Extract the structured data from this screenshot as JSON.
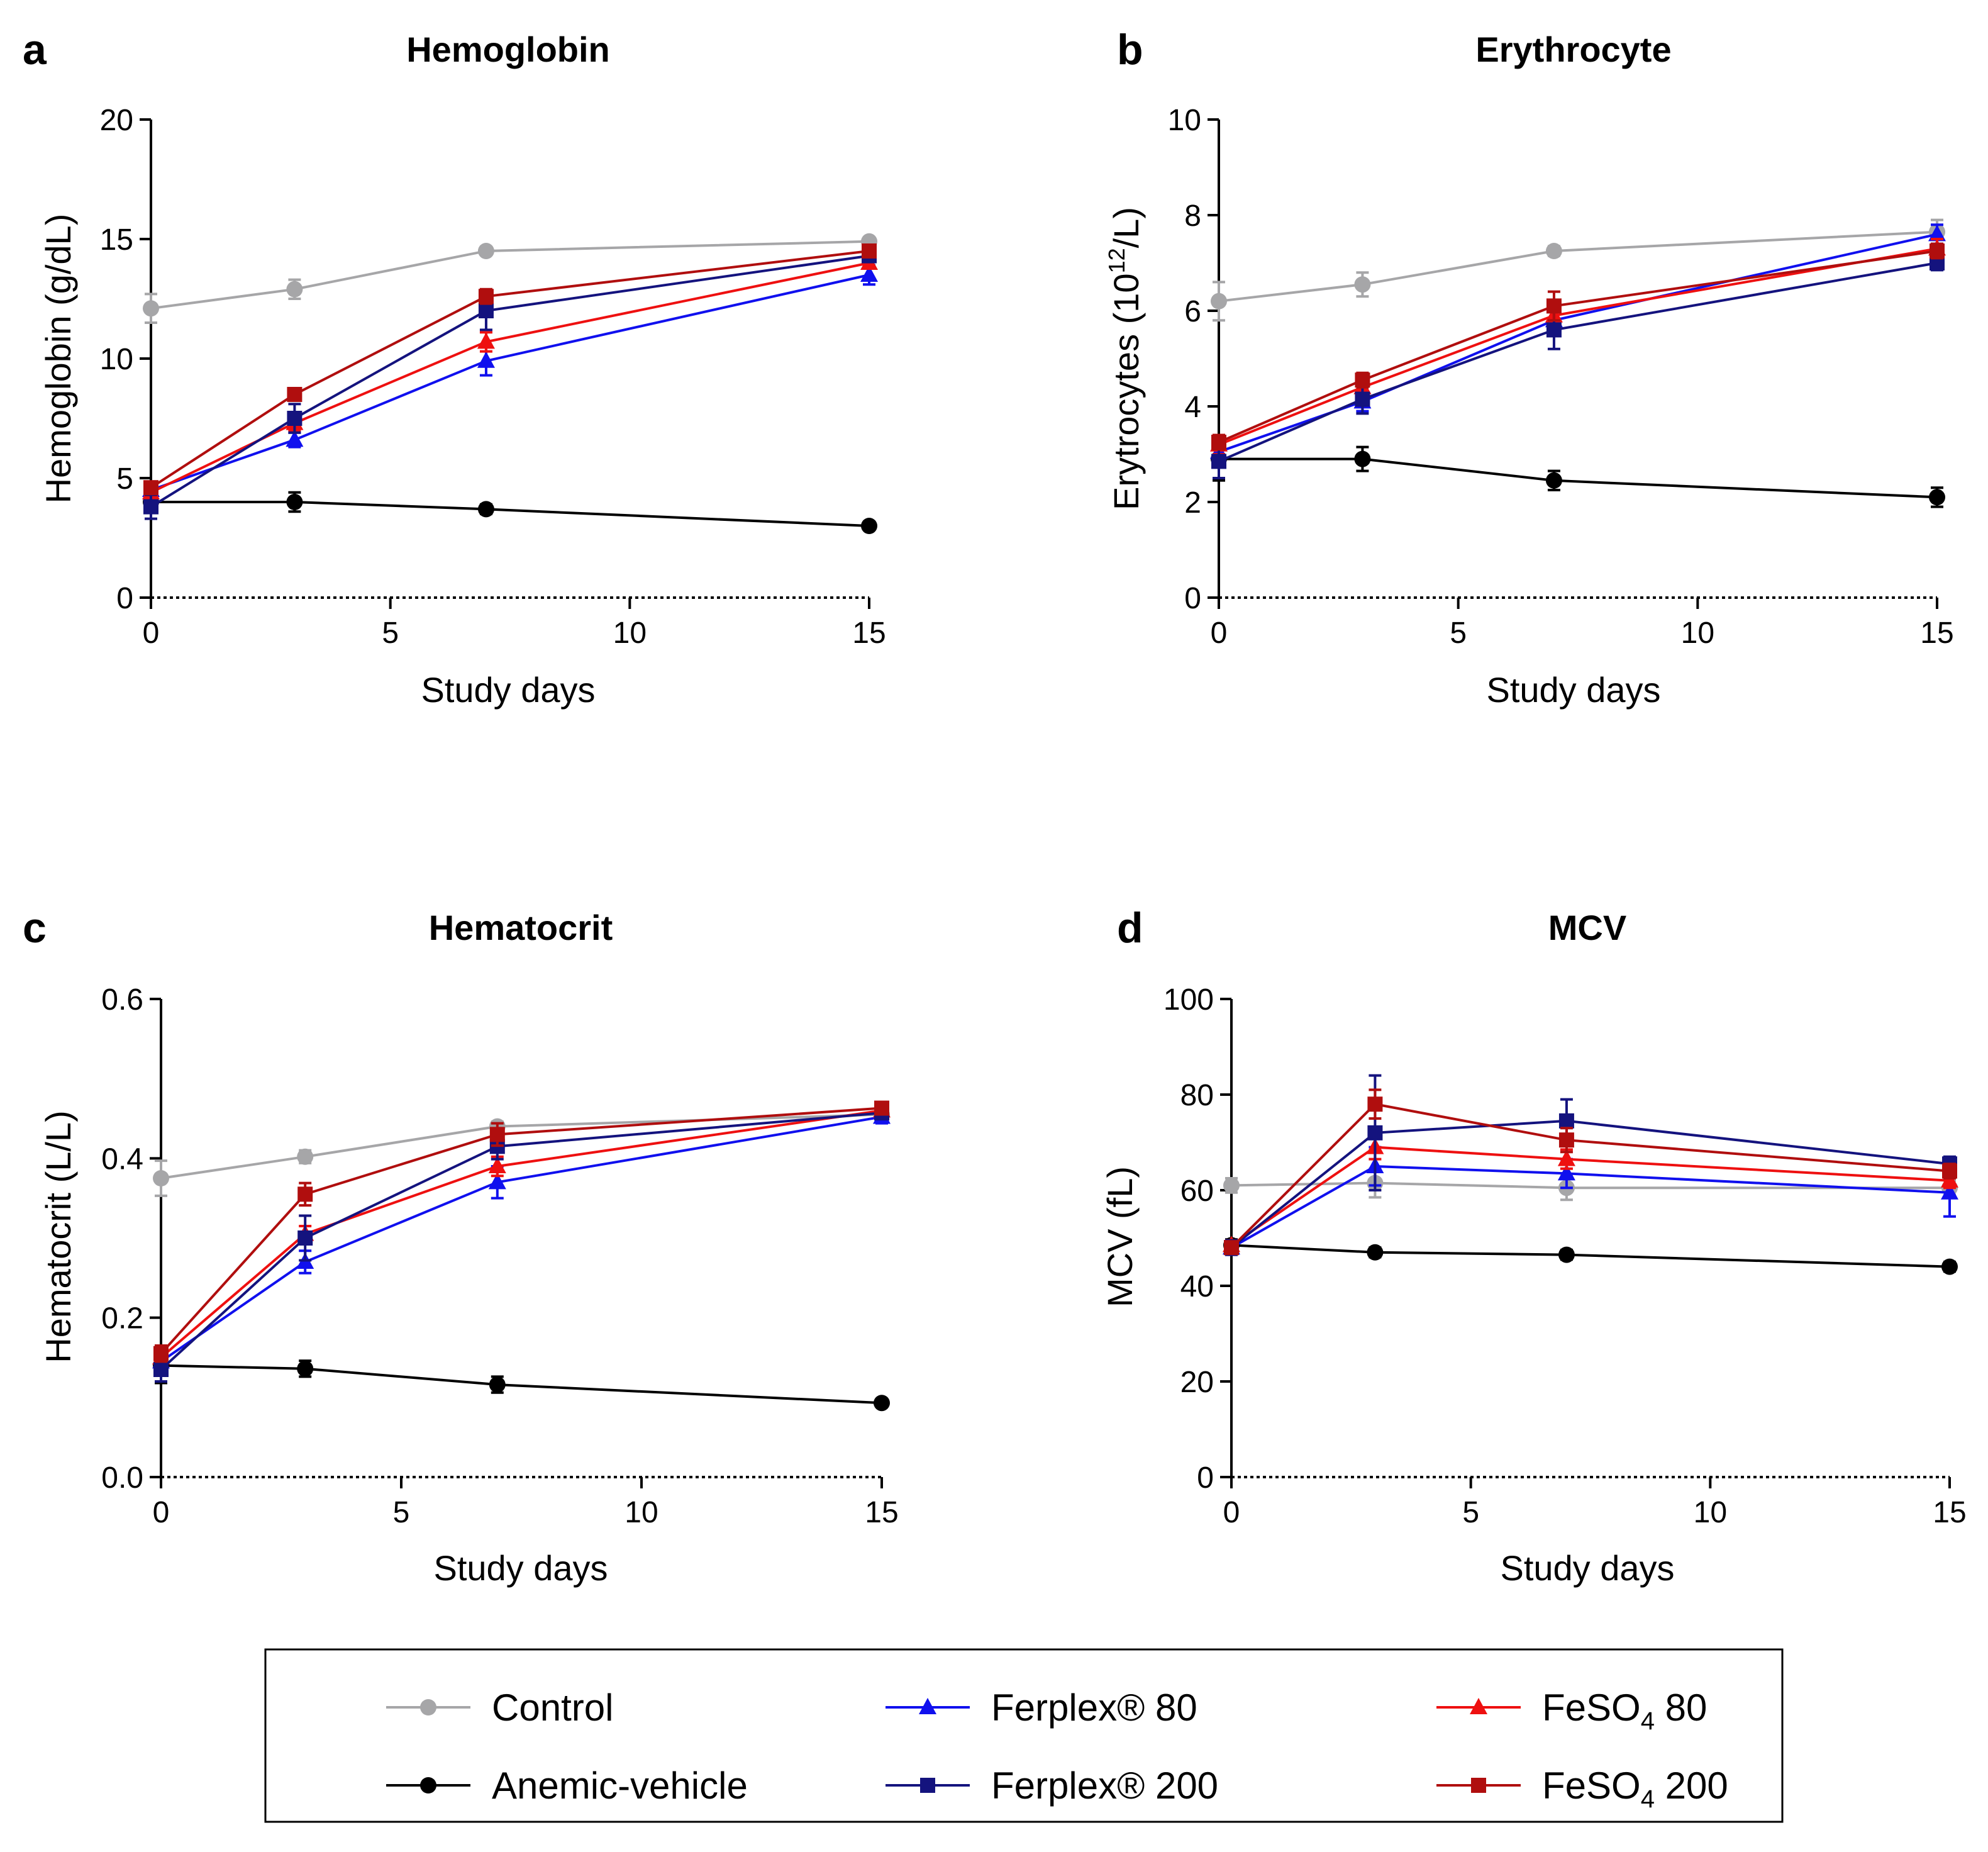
{
  "colors": {
    "control": "#a6a6a8",
    "anemic": "#000000",
    "ferplex80": "#1010ee",
    "ferplex200": "#14137e",
    "feso480": "#ee1010",
    "feso4200": "#b00e0e"
  },
  "legend": [
    {
      "key": "control",
      "label": "Control",
      "marker": "circle"
    },
    {
      "key": "anemic",
      "label": "Anemic-vehicle",
      "marker": "circle"
    },
    {
      "key": "ferplex80",
      "label": "Ferplex® 80",
      "marker": "triangle"
    },
    {
      "key": "ferplex200",
      "label": "Ferplex® 200",
      "marker": "square"
    },
    {
      "key": "feso480",
      "label_main": "FeSO",
      "label_sub": "4",
      "label_tail": " 80",
      "marker": "triangle"
    },
    {
      "key": "feso4200",
      "label_main": "FeSO",
      "label_sub": "4",
      "label_tail": " 200",
      "marker": "square"
    }
  ],
  "chart_data": [
    {
      "type": "line",
      "letter": "a",
      "title": "Hemoglobin",
      "xlabel": "Study days",
      "ylabel": "Hemoglobin (g/dL)",
      "xlim": [
        0,
        15
      ],
      "ylim": [
        0,
        20
      ],
      "xticks": [
        0,
        5,
        10,
        15
      ],
      "yticks": [
        0,
        5,
        10,
        15,
        20
      ],
      "ytick_labels": [
        "0",
        "5",
        "10",
        "15",
        "20"
      ],
      "x": [
        0,
        3,
        7,
        15
      ],
      "series": [
        {
          "key": "control",
          "name": "Control",
          "values": [
            12.1,
            12.9,
            14.5,
            14.9
          ],
          "errors": [
            0.6,
            0.4,
            0.15,
            0.15
          ]
        },
        {
          "key": "anemic",
          "name": "Anemic-vehicle",
          "values": [
            4.0,
            4.0,
            3.7,
            3.0
          ],
          "errors": [
            0.3,
            0.4,
            0.2,
            0.15
          ]
        },
        {
          "key": "ferplex80",
          "name": "Ferplex® 80",
          "values": [
            4.5,
            6.6,
            9.9,
            13.5
          ],
          "errors": [
            0.3,
            0.3,
            0.6,
            0.4
          ]
        },
        {
          "key": "ferplex200",
          "name": "Ferplex® 200",
          "values": [
            3.8,
            7.5,
            12.0,
            14.3
          ],
          "errors": [
            0.5,
            0.6,
            0.8,
            0.2
          ]
        },
        {
          "key": "feso480",
          "name": "FeSO4 80",
          "values": [
            4.4,
            7.3,
            10.7,
            14.0
          ],
          "errors": [
            0.3,
            0.3,
            0.4,
            0.2
          ]
        },
        {
          "key": "feso4200",
          "name": "FeSO4 200",
          "values": [
            4.6,
            8.5,
            12.6,
            14.5
          ],
          "errors": [
            0.2,
            0.2,
            0.3,
            0.2
          ]
        }
      ]
    },
    {
      "type": "line",
      "letter": "b",
      "title": "Erythrocyte",
      "xlabel": "Study days",
      "ylabel_main": "Erytrocytes (10",
      "ylabel_sup": "12",
      "ylabel_tail": "/L)",
      "xlim": [
        0,
        15
      ],
      "ylim": [
        0,
        10
      ],
      "xticks": [
        0,
        5,
        10,
        15
      ],
      "yticks": [
        0,
        2,
        4,
        6,
        8,
        10
      ],
      "ytick_labels": [
        "0",
        "2",
        "4",
        "6",
        "8",
        "10"
      ],
      "x": [
        0,
        3,
        7,
        15
      ],
      "series": [
        {
          "key": "control",
          "name": "Control",
          "values": [
            6.2,
            6.55,
            7.25,
            7.65
          ],
          "errors": [
            0.4,
            0.25,
            0.1,
            0.25
          ]
        },
        {
          "key": "anemic",
          "name": "Anemic-vehicle",
          "values": [
            2.9,
            2.9,
            2.45,
            2.1
          ],
          "errors": [
            0.45,
            0.25,
            0.2,
            0.2
          ]
        },
        {
          "key": "ferplex80",
          "name": "Ferplex® 80",
          "values": [
            3.05,
            4.1,
            5.8,
            7.6
          ],
          "errors": [
            0.25,
            0.2,
            0.3,
            0.2
          ]
        },
        {
          "key": "ferplex200",
          "name": "Ferplex® 200",
          "values": [
            2.85,
            4.15,
            5.6,
            7.0
          ],
          "errors": [
            0.35,
            0.3,
            0.4,
            0.15
          ]
        },
        {
          "key": "feso480",
          "name": "FeSO4 80",
          "values": [
            3.2,
            4.4,
            5.9,
            7.3
          ],
          "errors": [
            0.2,
            0.2,
            0.3,
            0.2
          ]
        },
        {
          "key": "feso4200",
          "name": "FeSO4 200",
          "values": [
            3.25,
            4.55,
            6.1,
            7.25
          ],
          "errors": [
            0.15,
            0.15,
            0.3,
            0.15
          ]
        }
      ]
    },
    {
      "type": "line",
      "letter": "c",
      "title": "Hematocrit",
      "xlabel": "Study days",
      "ylabel": "Hematocrit (L/L)",
      "xlim": [
        0,
        15
      ],
      "ylim": [
        0,
        0.6
      ],
      "xticks": [
        0,
        5,
        10,
        15
      ],
      "yticks": [
        0,
        0.2,
        0.4,
        0.6
      ],
      "ytick_labels": [
        "0.0",
        "0.2",
        "0.4",
        "0.6"
      ],
      "x": [
        0,
        3,
        7,
        15
      ],
      "series": [
        {
          "key": "control",
          "name": "Control",
          "values": [
            0.375,
            0.402,
            0.44,
            0.455
          ],
          "errors": [
            0.022,
            0.008,
            0.006,
            0.005
          ]
        },
        {
          "key": "anemic",
          "name": "Anemic-vehicle",
          "values": [
            0.14,
            0.136,
            0.116,
            0.093
          ],
          "errors": [
            0.022,
            0.01,
            0.01,
            0.005
          ]
        },
        {
          "key": "ferplex80",
          "name": "Ferplex® 80",
          "values": [
            0.145,
            0.27,
            0.37,
            0.452
          ],
          "errors": [
            0.012,
            0.014,
            0.02,
            0.008
          ]
        },
        {
          "key": "ferplex200",
          "name": "Ferplex® 200",
          "values": [
            0.135,
            0.3,
            0.415,
            0.457
          ],
          "errors": [
            0.015,
            0.028,
            0.016,
            0.006
          ]
        },
        {
          "key": "feso480",
          "name": "FeSO4 80",
          "values": [
            0.15,
            0.305,
            0.39,
            0.46
          ],
          "errors": [
            0.01,
            0.01,
            0.012,
            0.006
          ]
        },
        {
          "key": "feso4200",
          "name": "FeSO4 200",
          "values": [
            0.155,
            0.355,
            0.43,
            0.463
          ],
          "errors": [
            0.01,
            0.014,
            0.014,
            0.006
          ]
        }
      ]
    },
    {
      "type": "line",
      "letter": "d",
      "title": "MCV",
      "xlabel": "Study days",
      "ylabel": "MCV (fL)",
      "xlim": [
        0,
        15
      ],
      "ylim": [
        0,
        100
      ],
      "xticks": [
        0,
        5,
        10,
        15
      ],
      "yticks": [
        0,
        20,
        40,
        60,
        80,
        100
      ],
      "ytick_labels": [
        "0",
        "20",
        "40",
        "60",
        "80",
        "100"
      ],
      "x": [
        0,
        3,
        7,
        15
      ],
      "series": [
        {
          "key": "control",
          "name": "Control",
          "values": [
            61,
            61.5,
            60.5,
            60.5
          ],
          "errors": [
            1.5,
            3,
            2.5,
            1.5
          ]
        },
        {
          "key": "anemic",
          "name": "Anemic-vehicle",
          "values": [
            48.5,
            47,
            46.5,
            44
          ],
          "errors": [
            1.2,
            1,
            1,
            1
          ]
        },
        {
          "key": "ferplex80",
          "name": "Ferplex® 80",
          "values": [
            48,
            65,
            63.5,
            59.5
          ],
          "errors": [
            1.5,
            4,
            3,
            5
          ]
        },
        {
          "key": "ferplex200",
          "name": "Ferplex® 200",
          "values": [
            48,
            72,
            74.5,
            65.5
          ],
          "errors": [
            1.5,
            12,
            4.5,
            1.5
          ]
        },
        {
          "key": "feso480",
          "name": "FeSO4 80",
          "values": [
            48.5,
            69,
            66.5,
            62
          ],
          "errors": [
            1,
            2.5,
            2,
            1.5
          ]
        },
        {
          "key": "feso4200",
          "name": "FeSO4 200",
          "values": [
            48,
            78,
            70.5,
            64
          ],
          "errors": [
            1,
            3,
            2.5,
            1.5
          ]
        }
      ]
    }
  ]
}
